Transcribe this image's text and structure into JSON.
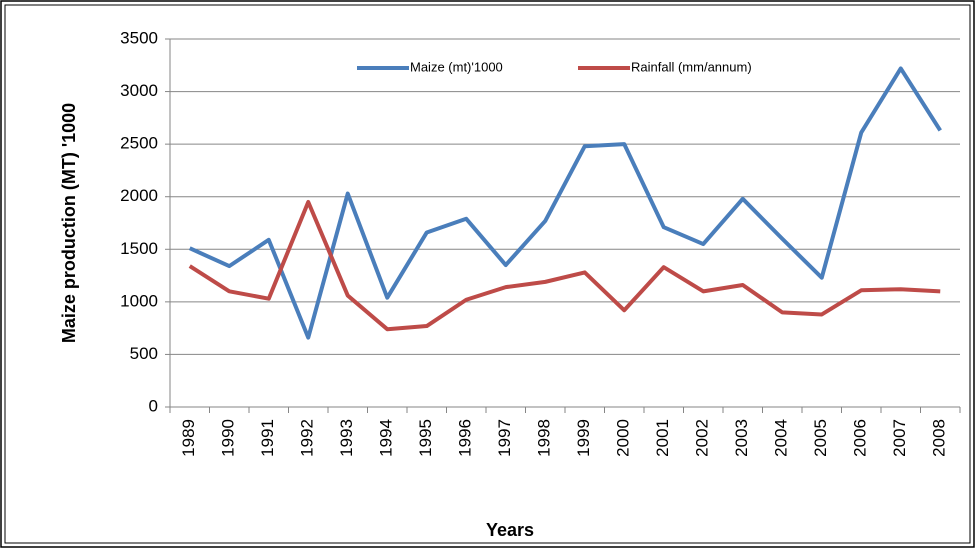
{
  "chart_data": {
    "type": "line",
    "xlabel": "Years",
    "ylabel": "Maize production (MT) '1000",
    "categories": [
      "1989",
      "1990",
      "1991",
      "1992",
      "1993",
      "1994",
      "1995",
      "1996",
      "1997",
      "1998",
      "1999",
      "2000",
      "2001",
      "2002",
      "2003",
      "2004",
      "2005",
      "2006",
      "2007",
      "2008"
    ],
    "series": [
      {
        "name": "Maize (mt)'1000",
        "color": "#4a7ebb",
        "values": [
          1510,
          1340,
          1590,
          660,
          2030,
          1040,
          1660,
          1790,
          1350,
          1770,
          2480,
          2500,
          1710,
          1550,
          1980,
          1600,
          1230,
          2610,
          3220,
          2630
        ]
      },
      {
        "name": "Rainfall (mm/annum)",
        "color": "#be4b48",
        "values": [
          1340,
          1100,
          1030,
          1950,
          1060,
          740,
          770,
          1020,
          1140,
          1190,
          1280,
          920,
          1330,
          1100,
          1160,
          900,
          880,
          1110,
          1120,
          1100
        ]
      }
    ],
    "ylim": [
      0,
      3500
    ],
    "yticks": [
      0,
      500,
      1000,
      1500,
      2000,
      2500,
      3000,
      3500
    ],
    "grid": true,
    "legend": "top"
  }
}
